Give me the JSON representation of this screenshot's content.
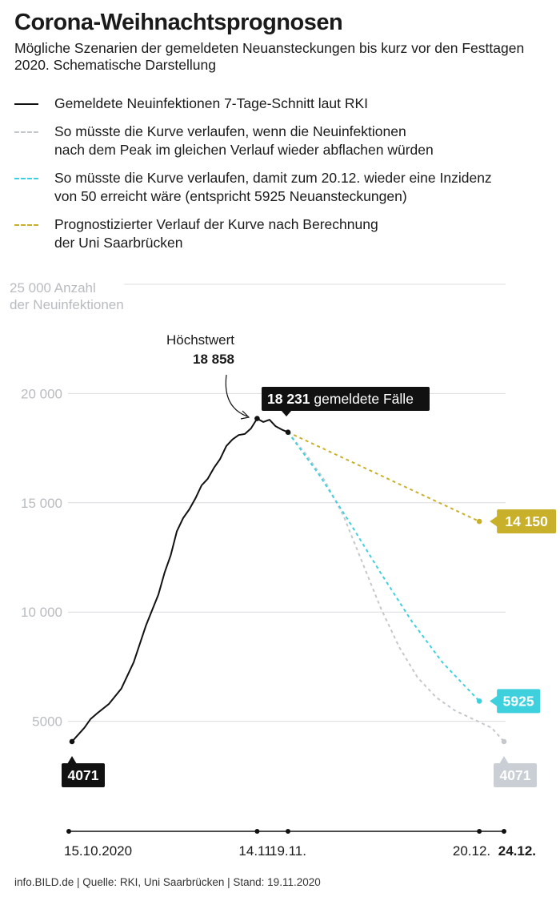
{
  "header": {
    "title": "Corona-Weihnachtsprognosen",
    "subtitle": "Mögliche Szenarien der gemeldeten Neuansteckungen bis kurz vor den Festtagen 2020. Schematische Darstellung"
  },
  "legend": [
    {
      "label": "Gemeldete Neuinfektionen 7-Tage-Schnitt laut RKI",
      "color": "#111111",
      "style": "solid"
    },
    {
      "label": "So müsste die Kurve verlaufen, wenn die Neuinfektionen\nnach dem Peak im gleichen Verlauf wieder abflachen würden",
      "color": "#c4c8cc",
      "style": "dashed"
    },
    {
      "label": "So müsste die Kurve verlaufen, damit zum 20.12. wieder eine Inzidenz\nvon 50 erreicht wäre (entspricht 5925 Neuansteckungen)",
      "color": "#3fd0de",
      "style": "dashed"
    },
    {
      "label": "Prognostizierter Verlauf der Kurve nach Berechnung\nder Uni Saarbrücken",
      "color": "#c9b02a",
      "style": "dashed"
    }
  ],
  "chart_data": {
    "type": "line",
    "ylabel": [
      "25 000 Anzahl",
      "der Neuinfektionen"
    ],
    "ylim": [
      0,
      25000
    ],
    "y_ticks": [
      {
        "value": 25000,
        "label": ""
      },
      {
        "value": 20000,
        "label": "20 000"
      },
      {
        "value": 15000,
        "label": "15 000"
      },
      {
        "value": 10000,
        "label": "10 000"
      },
      {
        "value": 5000,
        "label": "5000"
      }
    ],
    "x_start": "2020-10-15",
    "x_end": "2020-12-24",
    "x_ticks": [
      {
        "date": "2020-10-15",
        "label": "15.10.2020",
        "bold": false
      },
      {
        "date": "2020-11-14",
        "label": "14.11.",
        "bold": false
      },
      {
        "date": "2020-11-19",
        "label": "19.11.",
        "bold": false
      },
      {
        "date": "2020-12-20",
        "label": "20.12.",
        "bold": false
      },
      {
        "date": "2020-12-24",
        "label": "24.12.",
        "bold": true
      }
    ],
    "series": [
      {
        "color": "#111111",
        "dashed": false,
        "points": [
          [
            "2020-10-15",
            4071
          ],
          [
            "2020-10-17",
            4700
          ],
          [
            "2020-10-18",
            5100
          ],
          [
            "2020-10-19",
            5350
          ],
          [
            "2020-10-21",
            5800
          ],
          [
            "2020-10-23",
            6500
          ],
          [
            "2020-10-25",
            7700
          ],
          [
            "2020-10-27",
            9400
          ],
          [
            "2020-10-29",
            10800
          ],
          [
            "2020-10-30",
            11800
          ],
          [
            "2020-10-31",
            12600
          ],
          [
            "2020-11-01",
            13700
          ],
          [
            "2020-11-02",
            14300
          ],
          [
            "2020-11-03",
            14700
          ],
          [
            "2020-11-04",
            15200
          ],
          [
            "2020-11-05",
            15800
          ],
          [
            "2020-11-06",
            16100
          ],
          [
            "2020-11-07",
            16600
          ],
          [
            "2020-11-08",
            17000
          ],
          [
            "2020-11-09",
            17600
          ],
          [
            "2020-11-10",
            17900
          ],
          [
            "2020-11-11",
            18100
          ],
          [
            "2020-11-12",
            18150
          ],
          [
            "2020-11-13",
            18400
          ],
          [
            "2020-11-14",
            18858
          ],
          [
            "2020-11-15",
            18700
          ],
          [
            "2020-11-16",
            18800
          ],
          [
            "2020-11-17",
            18500
          ],
          [
            "2020-11-18",
            18350
          ],
          [
            "2020-11-19",
            18231
          ]
        ]
      },
      {
        "color": "#c4c8cc",
        "dashed": true,
        "points": [
          [
            "2020-11-19",
            18231
          ],
          [
            "2020-11-22",
            17200
          ],
          [
            "2020-11-25",
            16000
          ],
          [
            "2020-11-28",
            14400
          ],
          [
            "2020-12-01",
            12300
          ],
          [
            "2020-12-04",
            10200
          ],
          [
            "2020-12-07",
            8400
          ],
          [
            "2020-12-10",
            7000
          ],
          [
            "2020-12-13",
            6100
          ],
          [
            "2020-12-16",
            5500
          ],
          [
            "2020-12-19",
            5100
          ],
          [
            "2020-12-22",
            4700
          ],
          [
            "2020-12-24",
            4071
          ]
        ]
      },
      {
        "color": "#3fd0de",
        "dashed": true,
        "points": [
          [
            "2020-11-19",
            18231
          ],
          [
            "2020-11-24",
            16300
          ],
          [
            "2020-11-29",
            14100
          ],
          [
            "2020-12-04",
            11800
          ],
          [
            "2020-12-09",
            9600
          ],
          [
            "2020-12-14",
            7700
          ],
          [
            "2020-12-20",
            5925
          ]
        ]
      },
      {
        "color": "#c9b02a",
        "dashed": true,
        "points": [
          [
            "2020-11-19",
            18231
          ],
          [
            "2020-12-20",
            14150
          ]
        ]
      }
    ],
    "callouts": [
      {
        "date": "2020-10-15",
        "value": 4071,
        "text": "4071",
        "bg": "#111111",
        "fg": "#ffffff",
        "pointer": "up"
      },
      {
        "date": "2020-12-24",
        "value": 4071,
        "text": "4071",
        "bg": "#c9cfd4",
        "fg": "#ffffff",
        "pointer": "up"
      },
      {
        "date": "2020-12-20",
        "value": 5925,
        "text": "5925",
        "bg": "#3fd0de",
        "fg": "#ffffff",
        "pointer": "left"
      },
      {
        "date": "2020-12-20",
        "value": 14150,
        "text": "14 150",
        "bg": "#c9b02a",
        "fg": "#ffffff",
        "pointer": "left"
      }
    ],
    "peak_annotation": {
      "label": "Höchstwert",
      "value_label": "18 858",
      "date": "2020-11-14",
      "value": 18858
    },
    "current_annotation": {
      "date": "2020-11-19",
      "value": 18231,
      "value_label": "18 231",
      "text": "gemeldete Fälle"
    }
  },
  "footer": "info.BILD.de | Quelle: RKI, Uni Saarbrücken | Stand: 19.11.2020"
}
